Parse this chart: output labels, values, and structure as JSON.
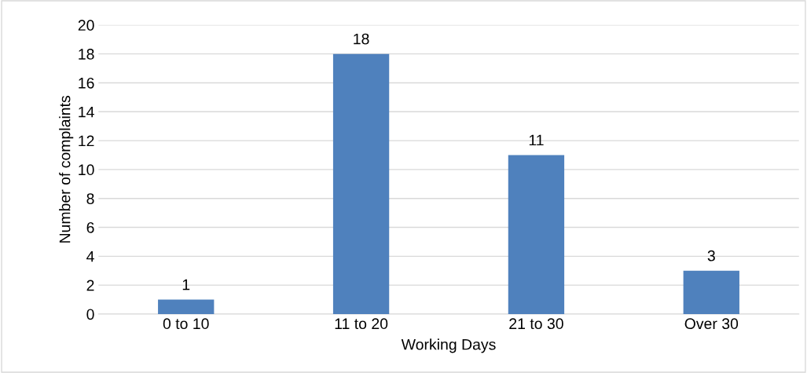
{
  "chart_data": {
    "type": "bar",
    "xlabel": "Working Days",
    "ylabel": "Number of complaints",
    "categories": [
      "0 to 10",
      "11 to 20",
      "21 to 30",
      "Over 30"
    ],
    "values": [
      1,
      18,
      11,
      3
    ],
    "color": "#4f81bd",
    "ylim": [
      0,
      20
    ],
    "yticks": [
      0,
      2,
      4,
      6,
      8,
      10,
      12,
      14,
      16,
      18,
      20
    ],
    "grid": "y",
    "data_labels": true
  }
}
